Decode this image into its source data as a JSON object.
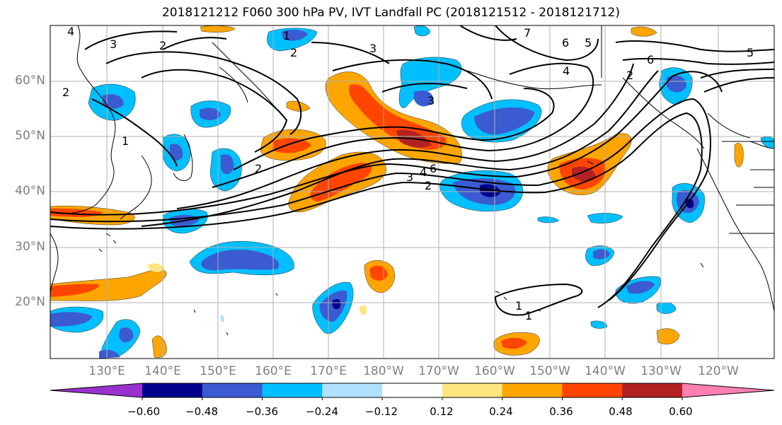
{
  "title": "2018121212 F060 300 hPa PV, IVT Landfall PC (2018121512 - 2018121712)",
  "lat_labels": [
    "60°N",
    "50°N",
    "40°N",
    "30°N",
    "20°N"
  ],
  "lon_labels": [
    "130°E",
    "140°E",
    "150°E",
    "160°E",
    "170°E",
    "180°W",
    "170°W",
    "160°W",
    "150°W",
    "140°W",
    "130°W",
    "120°W"
  ],
  "contour_labels": [
    "4",
    "3",
    "2",
    "2",
    "3",
    "1",
    "2",
    "1",
    "7",
    "6",
    "5",
    "4",
    "5",
    "6",
    "3",
    "4",
    "6",
    "3",
    "2",
    "1",
    "1",
    "2",
    "2"
  ],
  "colorbar": {
    "colors": [
      "#9932cc",
      "#00008b",
      "#3a5bd1",
      "#00bfff",
      "#b0e2ff",
      "#ffffff",
      "#ffe680",
      "#ffa500",
      "#ff4500",
      "#b22222",
      "#ff7fb0"
    ],
    "tick_labels": [
      "−0.60",
      "−0.48",
      "−0.36",
      "−0.24",
      "−0.12",
      "0.12",
      "0.24",
      "0.36",
      "0.48",
      "0.60"
    ]
  }
}
